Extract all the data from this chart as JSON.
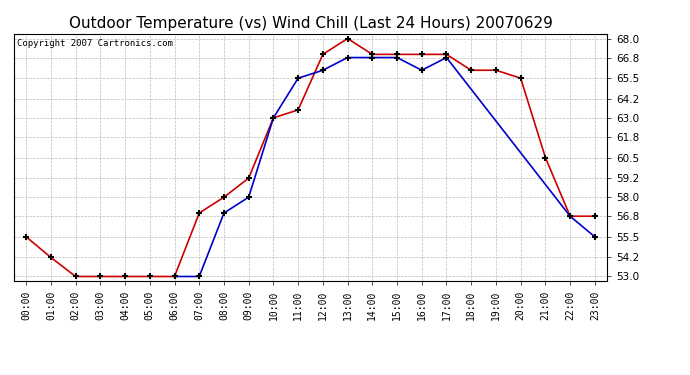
{
  "title": "Outdoor Temperature (vs) Wind Chill (Last 24 Hours) 20070629",
  "copyright": "Copyright 2007 Cartronics.com",
  "hours": [
    "00:00",
    "01:00",
    "02:00",
    "03:00",
    "04:00",
    "05:00",
    "06:00",
    "07:00",
    "08:00",
    "09:00",
    "10:00",
    "11:00",
    "12:00",
    "13:00",
    "14:00",
    "15:00",
    "16:00",
    "17:00",
    "18:00",
    "19:00",
    "20:00",
    "21:00",
    "22:00",
    "23:00"
  ],
  "temp": [
    55.5,
    54.2,
    53.0,
    53.0,
    53.0,
    53.0,
    53.0,
    57.0,
    58.0,
    59.2,
    63.0,
    63.5,
    67.0,
    68.0,
    67.0,
    67.0,
    67.0,
    67.0,
    66.0,
    66.0,
    65.5,
    60.5,
    56.8,
    56.8
  ],
  "windchill": [
    null,
    null,
    null,
    null,
    null,
    null,
    53.0,
    53.0,
    57.0,
    58.0,
    63.0,
    65.5,
    66.0,
    66.8,
    66.8,
    66.8,
    66.0,
    66.8,
    null,
    null,
    null,
    null,
    56.8,
    55.5
  ],
  "temp_color": "#cc0000",
  "windchill_color": "#0000cc",
  "background_color": "#ffffff",
  "plot_bg_color": "#ffffff",
  "grid_color": "#bbbbbb",
  "ymin": 53.0,
  "ymax": 68.0,
  "yticks": [
    53.0,
    54.2,
    55.5,
    56.8,
    58.0,
    59.2,
    60.5,
    61.8,
    63.0,
    64.2,
    65.5,
    66.8,
    68.0
  ],
  "marker": "+",
  "marker_color": "#000000",
  "marker_size": 5,
  "line_width": 1.2,
  "title_fontsize": 11,
  "copyright_fontsize": 6.5,
  "tick_fontsize": 7,
  "ytick_fontsize": 7.5
}
